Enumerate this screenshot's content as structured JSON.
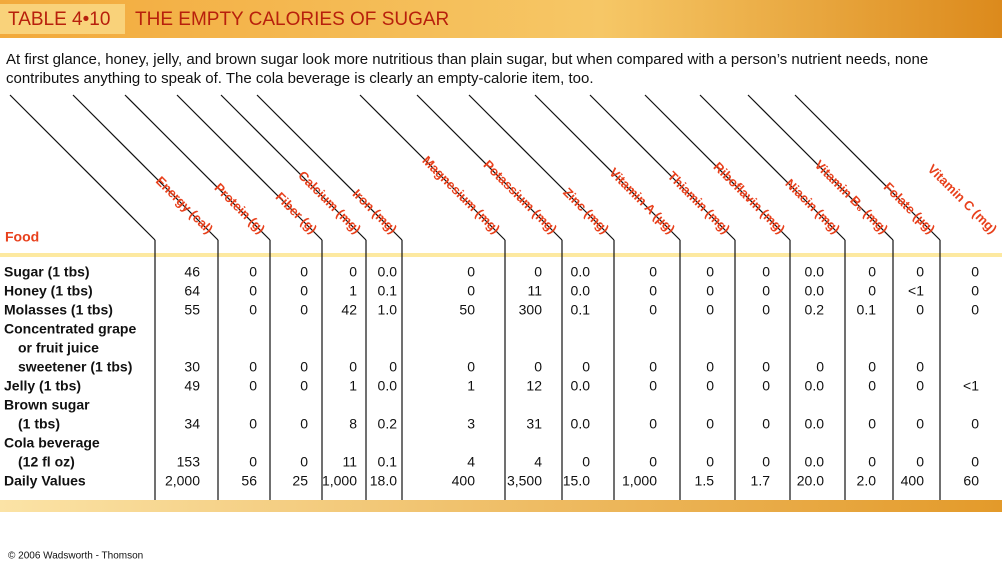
{
  "header": {
    "label": "TABLE 4•10",
    "title": "THE EMPTY CALORIES OF SUGAR"
  },
  "caption": "At first glance, honey, jelly, and brown sugar look more nutritious than plain sugar, but when compared with a person’s nutrient needs, none contributes anything to speak of. The cola beverage is clearly an empty-calorie item, too.",
  "table": {
    "corner": "Food",
    "columns": [
      "Energy (cal)",
      "Protein (g)",
      "Fiber (g)",
      "Calcium (mg)",
      "Iron (mg)",
      "Magnesium (mg)",
      "Potassium (mg)",
      "Zinc (mg)",
      "Vitamin A (µg)",
      "Thiamin (mg)",
      "Riboflavin (mg)",
      "Niacin (mg)",
      "Vitamin B₆ (mg)",
      "Folate (µg)",
      "Vitamin C (mg)"
    ],
    "rows": [
      {
        "food": [
          "Sugar (1 tbs)"
        ],
        "cells": [
          "46",
          "0",
          "0",
          "0",
          "0.0",
          "0",
          "0",
          "0.0",
          "0",
          "0",
          "0",
          "0.0",
          "0",
          "0",
          "0"
        ]
      },
      {
        "food": [
          "Honey (1 tbs)"
        ],
        "cells": [
          "64",
          "0",
          "0",
          "1",
          "0.1",
          "0",
          "11",
          "0.0",
          "0",
          "0",
          "0",
          "0.0",
          "0",
          "<1",
          "0"
        ]
      },
      {
        "food": [
          "Molasses (1 tbs)"
        ],
        "cells": [
          "55",
          "0",
          "0",
          "42",
          "1.0",
          "50",
          "300",
          "0.1",
          "0",
          "0",
          "0",
          "0.2",
          "0.1",
          "0",
          "0"
        ]
      },
      {
        "food": [
          "Concentrated grape",
          "or fruit juice",
          "sweetener (1 tbs)"
        ],
        "cells": [
          "30",
          "0",
          "0",
          "0",
          "0",
          "0",
          "0",
          "0",
          "0",
          "0",
          "0",
          "0",
          "0",
          "0",
          null
        ]
      },
      {
        "food": [
          "Jelly (1 tbs)"
        ],
        "cells": [
          "49",
          "0",
          "0",
          "1",
          "0.0",
          "1",
          "12",
          "0.0",
          "0",
          "0",
          "0",
          "0.0",
          "0",
          "0",
          "<1"
        ]
      },
      {
        "food": [
          "Brown sugar",
          "(1 tbs)"
        ],
        "cells": [
          "34",
          "0",
          "0",
          "8",
          "0.2",
          "3",
          "31",
          "0.0",
          "0",
          "0",
          "0",
          "0.0",
          "0",
          "0",
          "0"
        ]
      },
      {
        "food": [
          "Cola beverage",
          "(12 fl oz)"
        ],
        "cells": [
          "153",
          "0",
          "0",
          "11",
          "0.1",
          "4",
          "4",
          "0",
          "0",
          "0",
          "0",
          "0.0",
          "0",
          "0",
          "0"
        ]
      },
      {
        "food": [
          "Daily Values"
        ],
        "cells": [
          "2,000",
          "56",
          "25",
          "1,000",
          "18.0",
          "400",
          "3,500",
          "15.0",
          "1,000",
          "1.5",
          "1.7",
          "20.0",
          "2.0",
          "400",
          "60"
        ]
      }
    ]
  },
  "copyright": "© 2006 Wadsworth - Thomson"
}
